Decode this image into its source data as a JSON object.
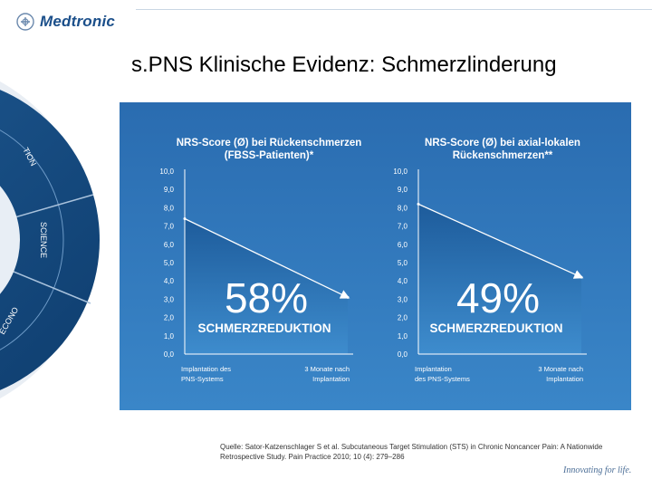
{
  "brand": {
    "name": "Medtronic",
    "tagline": "Innovating for life."
  },
  "slide": {
    "title": "s.PNS Klinische Evidenz: Schmerzlinderung"
  },
  "wheel_labels": [
    "TION",
    "SCIENCE",
    "ECONO"
  ],
  "colors": {
    "panel": "#2e75bb",
    "brand": "#1b4f8a",
    "arrow": "#ffffff"
  },
  "chart_data": [
    {
      "type": "area",
      "title": [
        "NRS-Score (Ø) bei Rückenschmerzen",
        "(FBSS-Patienten)*"
      ],
      "yticks": [
        "10,0",
        "9,0",
        "8,0",
        "7,0",
        "6,0",
        "5,0",
        "4,0",
        "3,0",
        "2,0",
        "1,0",
        "0,0"
      ],
      "ylim": [
        0,
        10
      ],
      "categories": [
        [
          "Implantation des",
          "PNS-Systems"
        ],
        [
          "3 Monate nach",
          "Implantation"
        ]
      ],
      "values": [
        7.4,
        3.1
      ],
      "reduction_label": "58%",
      "reduction_caption": "SCHMERZREDUKTION"
    },
    {
      "type": "area",
      "title": [
        "NRS-Score (Ø) bei axial-lokalen",
        "Rückenschmerzen**"
      ],
      "yticks": [
        "10,0",
        "9,0",
        "8,0",
        "7,0",
        "6,0",
        "5,0",
        "4,0",
        "3,0",
        "2,0",
        "1,0",
        "0,0"
      ],
      "ylim": [
        0,
        10
      ],
      "categories": [
        [
          "Implantation",
          "des PNS-Systems"
        ],
        [
          "3 Monate nach",
          "Implantation"
        ]
      ],
      "values": [
        8.2,
        4.2
      ],
      "reduction_label": "49%",
      "reduction_caption": "SCHMERZREDUKTION"
    }
  ],
  "source": "Quelle: Sator-Katzenschlager S et al. Subcutaneous Target Stimulation (STS) in Chronic Noncancer Pain: A Nationwide Retrospective Study. Pain Practice 2010; 10 (4): 279–286"
}
